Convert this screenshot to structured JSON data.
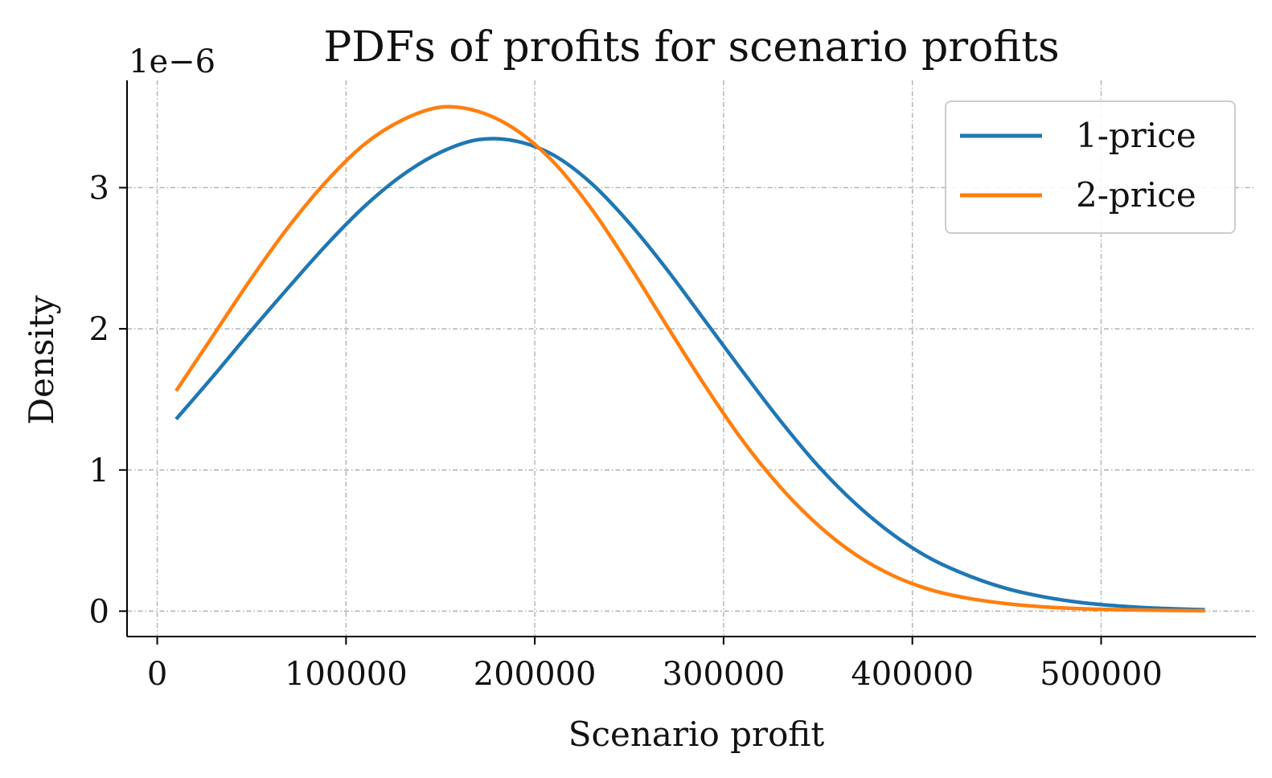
{
  "chart_data": {
    "type": "line",
    "title": "PDFs of profits for scenario profits",
    "xlabel": "Scenario profit",
    "ylabel": "Density",
    "y_offset_label": "1e−6",
    "xlim": [
      -16000,
      582000
    ],
    "ylim": [
      -1.8e-07,
      3.76e-06
    ],
    "xticks": [
      0,
      100000,
      200000,
      300000,
      400000,
      500000
    ],
    "xtick_labels": [
      "0",
      "100000",
      "200000",
      "300000",
      "400000",
      "500000"
    ],
    "yticks": [
      0,
      1e-06,
      2e-06,
      3e-06
    ],
    "ytick_labels": [
      "0",
      "1",
      "2",
      "3"
    ],
    "grid": true,
    "legend_position": "upper right",
    "series": [
      {
        "name": "1-price",
        "color": "#1f77b4",
        "x": [
          10000,
          30000,
          50000,
          70000,
          90000,
          110000,
          130000,
          150000,
          170000,
          190000,
          210000,
          230000,
          250000,
          270000,
          290000,
          310000,
          330000,
          350000,
          370000,
          390000,
          410000,
          430000,
          450000,
          470000,
          490000,
          510000,
          530000,
          555000
        ],
        "y": [
          1.36e-06,
          1.67e-06,
          1.99e-06,
          2.3e-06,
          2.6e-06,
          2.87e-06,
          3.09e-06,
          3.25e-06,
          3.34e-06,
          3.33e-06,
          3.23e-06,
          3.03e-06,
          2.75e-06,
          2.42e-06,
          2.06e-06,
          1.7e-06,
          1.35e-06,
          1.03e-06,
          7.6e-07,
          5.4e-07,
          3.7e-07,
          2.5e-07,
          1.6e-07,
          1e-07,
          6e-08,
          3.6e-08,
          2.1e-08,
          1e-08
        ]
      },
      {
        "name": "2-price",
        "color": "#ff7f0e",
        "x": [
          10000,
          30000,
          50000,
          70000,
          90000,
          110000,
          130000,
          150000,
          170000,
          190000,
          210000,
          230000,
          250000,
          270000,
          290000,
          310000,
          330000,
          350000,
          370000,
          390000,
          410000,
          430000,
          450000,
          470000,
          490000,
          510000,
          530000,
          555000
        ],
        "y": [
          1.56e-06,
          1.96e-06,
          2.36e-06,
          2.73e-06,
          3.05e-06,
          3.31e-06,
          3.48e-06,
          3.57e-06,
          3.54e-06,
          3.41e-06,
          3.18e-06,
          2.85e-06,
          2.45e-06,
          2.02e-06,
          1.6e-06,
          1.21e-06,
          8.8e-07,
          6.1e-07,
          4e-07,
          2.5e-07,
          1.5e-07,
          9e-08,
          5.3e-08,
          3e-08,
          1.7e-08,
          1e-08,
          6e-09,
          3e-09
        ]
      }
    ]
  }
}
